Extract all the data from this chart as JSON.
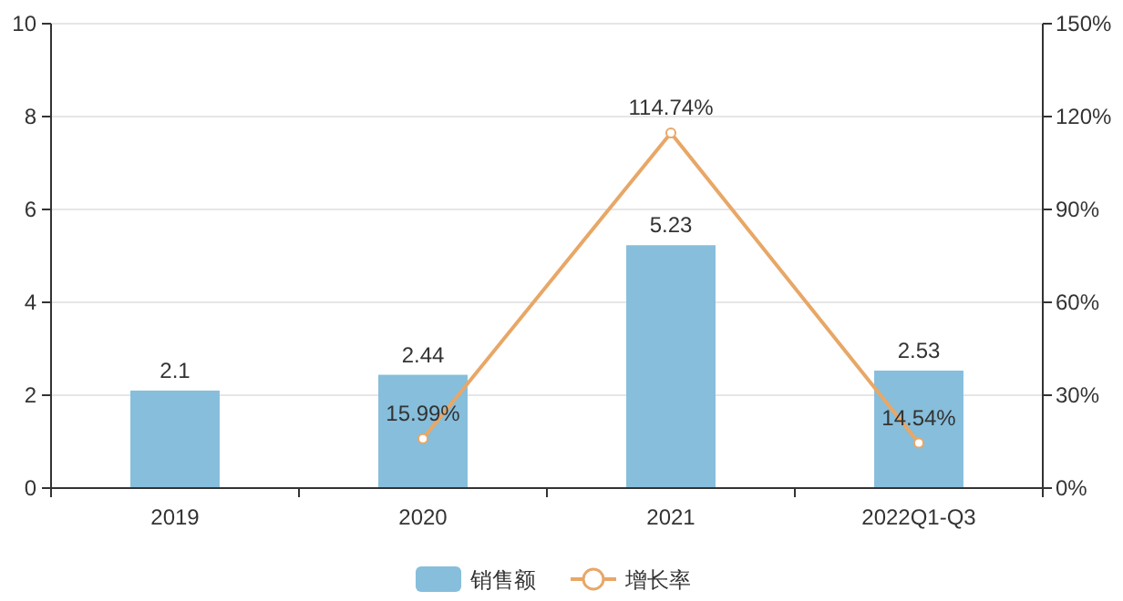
{
  "chart_data": {
    "type": "bar",
    "categories": [
      "2019",
      "2020",
      "2021",
      "2022Q1-Q3"
    ],
    "series": [
      {
        "name": "销售额",
        "color": "#86bedb",
        "values": [
          2.1,
          2.44,
          5.23,
          2.53
        ],
        "value_labels": [
          "2.1",
          "2.44",
          "5.23",
          "2.53"
        ]
      },
      {
        "name": "增长率",
        "type": "line",
        "axis": "y2",
        "color": "#e8a767",
        "marker": "circle",
        "values": [
          null,
          15.99,
          114.74,
          14.54
        ],
        "value_labels": [
          null,
          "15.99%",
          "114.74%",
          "14.54%"
        ]
      }
    ],
    "ylim": [
      0,
      10
    ],
    "yticks": [
      0,
      2,
      4,
      6,
      8,
      10
    ],
    "y2lim": [
      0,
      150
    ],
    "y2ticks": [
      {
        "value": 0,
        "label": "0%"
      },
      {
        "value": 30,
        "label": "30%"
      },
      {
        "value": 60,
        "label": "60%"
      },
      {
        "value": 90,
        "label": "90%"
      },
      {
        "value": 120,
        "label": "120%"
      },
      {
        "value": 150,
        "label": "150%"
      }
    ],
    "grid": "y",
    "legend": "bottom"
  }
}
